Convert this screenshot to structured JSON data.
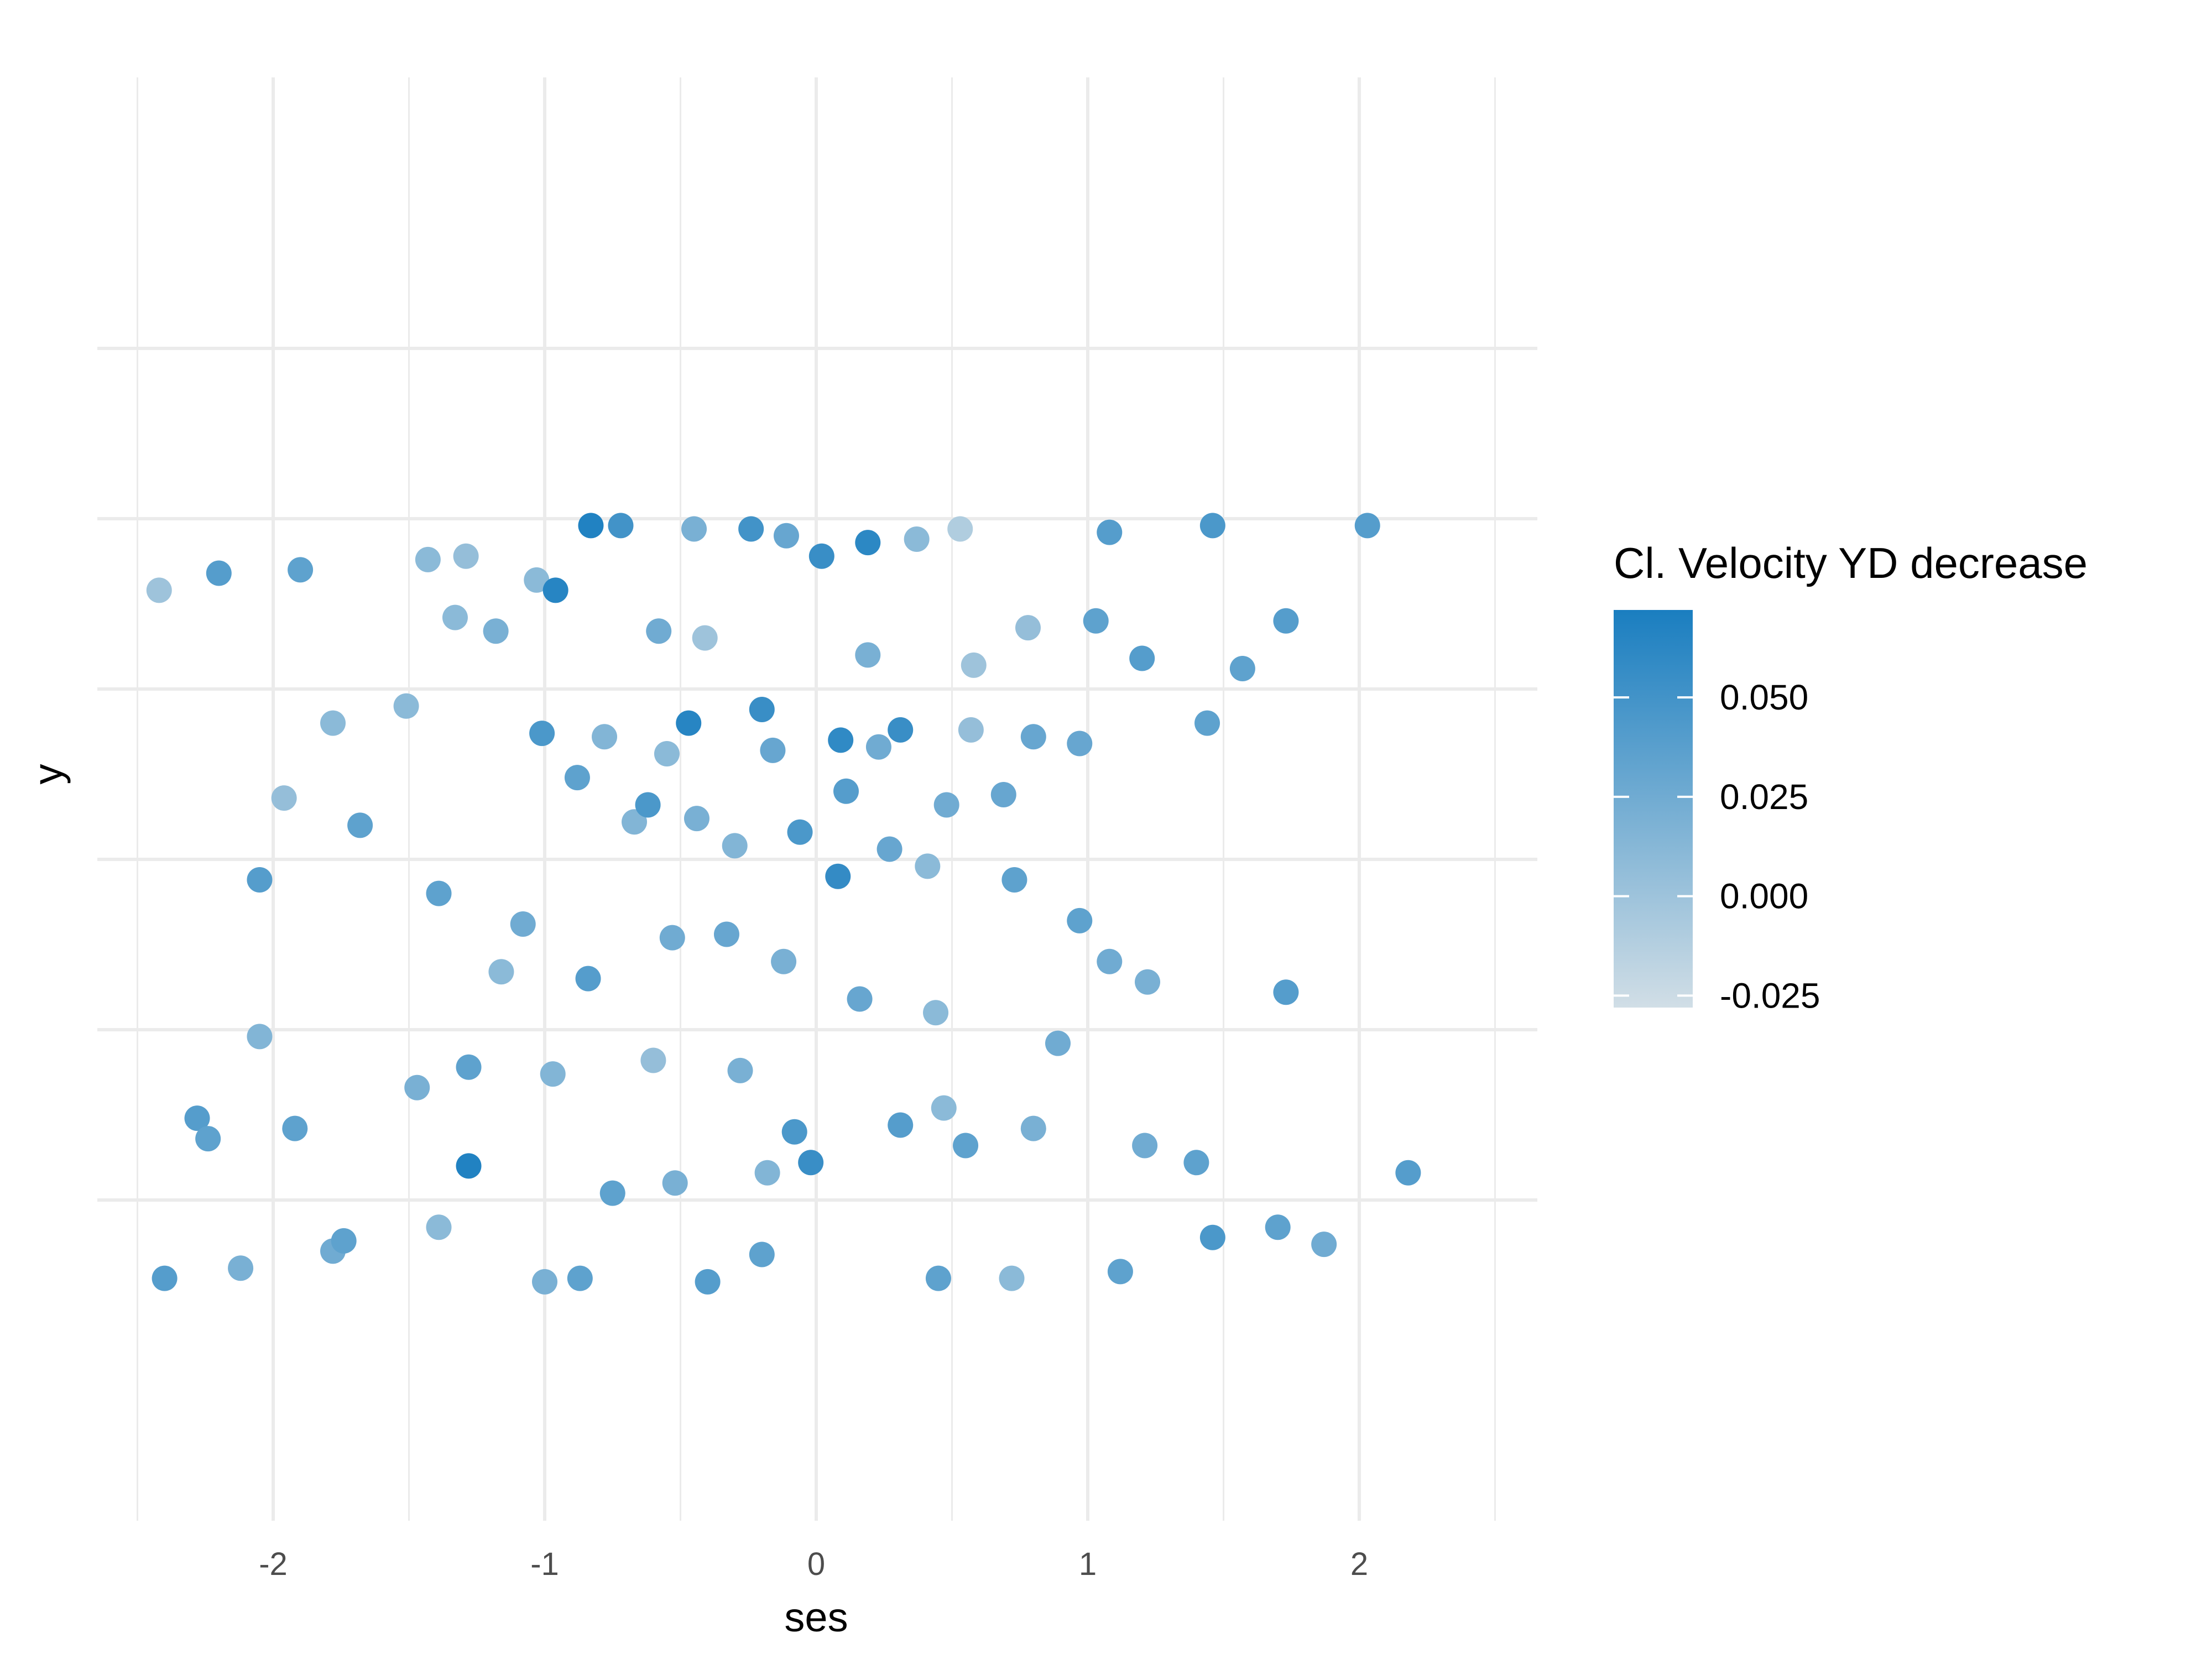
{
  "chart_data": {
    "type": "scatter",
    "title": "",
    "xlabel": "ses",
    "ylabel": "y",
    "xlim": [
      -2.6,
      2.6
    ],
    "ylim": [
      -1.55,
      1.55
    ],
    "x_ticks": [
      -2,
      -1,
      0,
      1,
      2
    ],
    "x_tick_labels": [
      "-2",
      "-1",
      "0",
      "1",
      "2"
    ],
    "y_gridlines": [
      -1.25,
      -0.75,
      -0.25,
      0.25,
      0.75,
      1.25
    ],
    "y_tick_labels_shown": false,
    "grid": true,
    "legend": {
      "title": "Cl. Velocity YD decrease",
      "position": "right",
      "type": "colorbar",
      "range": [
        -0.028,
        0.072
      ],
      "breaks": [
        -0.025,
        0.0,
        0.025,
        0.05
      ],
      "break_labels": [
        "-0.025",
        "0.000",
        "0.025",
        "0.050"
      ],
      "color_low": "#d1dee6",
      "color_high": "#1a7ec0"
    },
    "colors": {
      "grid": "#ebebeb",
      "background": "#ffffff"
    },
    "points": [
      [
        -2.42,
        0.54,
        0.0
      ],
      [
        -2.2,
        0.59,
        0.04
      ],
      [
        -1.9,
        0.6,
        0.035
      ],
      [
        -1.43,
        0.63,
        0.01
      ],
      [
        -1.29,
        0.64,
        0.005
      ],
      [
        -1.03,
        0.57,
        0.01
      ],
      [
        -0.96,
        0.54,
        0.065
      ],
      [
        -0.83,
        0.73,
        0.068
      ],
      [
        -0.72,
        0.73,
        0.05
      ],
      [
        -0.45,
        0.72,
        0.02
      ],
      [
        -0.24,
        0.72,
        0.05
      ],
      [
        -0.11,
        0.7,
        0.03
      ],
      [
        0.02,
        0.64,
        0.055
      ],
      [
        0.19,
        0.68,
        0.062
      ],
      [
        0.37,
        0.69,
        0.01
      ],
      [
        0.53,
        0.72,
        -0.01
      ],
      [
        1.08,
        0.71,
        0.04
      ],
      [
        1.46,
        0.73,
        0.045
      ],
      [
        2.03,
        0.73,
        0.04
      ],
      [
        -1.33,
        0.46,
        0.01
      ],
      [
        -1.18,
        0.42,
        0.02
      ],
      [
        -0.58,
        0.42,
        0.025
      ],
      [
        -0.41,
        0.4,
        0.0
      ],
      [
        0.19,
        0.35,
        0.02
      ],
      [
        0.58,
        0.32,
        0.0
      ],
      [
        0.78,
        0.43,
        0.005
      ],
      [
        1.03,
        0.45,
        0.035
      ],
      [
        1.2,
        0.34,
        0.04
      ],
      [
        1.57,
        0.31,
        0.035
      ],
      [
        1.73,
        0.45,
        0.04
      ],
      [
        -1.78,
        0.15,
        0.01
      ],
      [
        -1.51,
        0.2,
        0.01
      ],
      [
        -1.01,
        0.12,
        0.045
      ],
      [
        -0.47,
        0.15,
        0.065
      ],
      [
        -0.2,
        0.19,
        0.055
      ],
      [
        0.09,
        0.1,
        0.06
      ],
      [
        0.31,
        0.13,
        0.055
      ],
      [
        0.57,
        0.13,
        0.005
      ],
      [
        0.8,
        0.11,
        0.03
      ],
      [
        0.97,
        0.09,
        0.03
      ],
      [
        1.44,
        0.15,
        0.035
      ],
      [
        -2.05,
        -0.31,
        0.04
      ],
      [
        -1.96,
        -0.07,
        0.005
      ],
      [
        -1.68,
        -0.15,
        0.035
      ],
      [
        -1.39,
        -0.35,
        0.035
      ],
      [
        -1.16,
        -0.58,
        0.01
      ],
      [
        -0.88,
        -0.01,
        0.035
      ],
      [
        -0.67,
        -0.14,
        0.015
      ],
      [
        -0.33,
        -0.47,
        0.03
      ],
      [
        -0.06,
        -0.17,
        0.045
      ],
      [
        0.08,
        -0.3,
        0.058
      ],
      [
        0.41,
        -0.27,
        0.01
      ],
      [
        0.73,
        -0.31,
        0.035
      ],
      [
        0.97,
        -0.43,
        0.035
      ],
      [
        1.22,
        -0.61,
        0.02
      ],
      [
        1.73,
        -0.64,
        0.04
      ],
      [
        -2.05,
        -0.77,
        0.015
      ],
      [
        -2.28,
        -1.01,
        0.04
      ],
      [
        -2.24,
        -1.07,
        0.035
      ],
      [
        -1.92,
        -1.04,
        0.035
      ],
      [
        -1.47,
        -0.92,
        0.02
      ],
      [
        -1.28,
        -0.86,
        0.035
      ],
      [
        -1.28,
        -1.15,
        0.068
      ],
      [
        -0.97,
        -0.88,
        0.015
      ],
      [
        -0.6,
        -0.84,
        0.005
      ],
      [
        -0.28,
        -0.87,
        0.02
      ],
      [
        -0.08,
        -1.05,
        0.045
      ],
      [
        -0.02,
        -1.14,
        0.055
      ],
      [
        0.31,
        -1.03,
        0.04
      ],
      [
        0.55,
        -1.09,
        0.035
      ],
      [
        0.8,
        -1.04,
        0.02
      ],
      [
        1.21,
        -1.09,
        0.025
      ],
      [
        1.4,
        -1.14,
        0.035
      ],
      [
        2.18,
        -1.17,
        0.04
      ],
      [
        -2.4,
        -1.48,
        0.04
      ],
      [
        -2.12,
        -1.45,
        0.02
      ],
      [
        -1.78,
        -1.4,
        0.025
      ],
      [
        -1.74,
        -1.37,
        0.035
      ],
      [
        -1.39,
        -1.33,
        0.01
      ],
      [
        -1.0,
        -1.49,
        0.02
      ],
      [
        -0.87,
        -1.48,
        0.035
      ],
      [
        -0.4,
        -1.49,
        0.04
      ],
      [
        -0.2,
        -1.41,
        0.035
      ],
      [
        0.45,
        -1.48,
        0.035
      ],
      [
        0.72,
        -1.48,
        0.01
      ],
      [
        1.12,
        -1.46,
        0.035
      ],
      [
        1.46,
        -1.36,
        0.045
      ],
      [
        1.7,
        -1.33,
        0.035
      ],
      [
        1.87,
        -1.38,
        0.025
      ],
      [
        -0.62,
        -0.09,
        0.045
      ],
      [
        -0.44,
        -0.13,
        0.02
      ],
      [
        -0.3,
        -0.21,
        0.015
      ],
      [
        0.11,
        -0.05,
        0.04
      ],
      [
        0.27,
        -0.22,
        0.03
      ],
      [
        0.48,
        -0.09,
        0.025
      ],
      [
        0.69,
        -0.06,
        0.03
      ],
      [
        -0.78,
        0.11,
        0.015
      ],
      [
        -0.55,
        0.06,
        0.01
      ],
      [
        -0.16,
        0.07,
        0.03
      ],
      [
        0.23,
        0.08,
        0.025
      ],
      [
        -1.08,
        -0.44,
        0.025
      ],
      [
        -0.84,
        -0.6,
        0.04
      ],
      [
        -0.53,
        -0.48,
        0.025
      ],
      [
        -0.12,
        -0.55,
        0.02
      ],
      [
        0.16,
        -0.66,
        0.03
      ],
      [
        0.44,
        -0.7,
        0.01
      ],
      [
        -0.75,
        -1.23,
        0.035
      ],
      [
        -0.52,
        -1.2,
        0.02
      ],
      [
        -0.18,
        -1.17,
        0.015
      ],
      [
        0.47,
        -0.98,
        0.01
      ],
      [
        0.89,
        -0.79,
        0.025
      ],
      [
        1.08,
        -0.55,
        0.025
      ]
    ]
  }
}
